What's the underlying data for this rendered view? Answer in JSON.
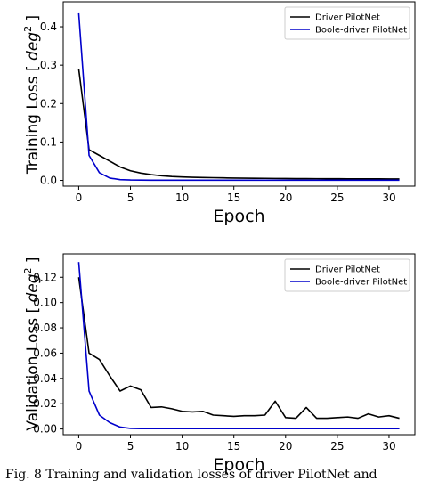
{
  "caption": "Fig. 8 Training and validation losses of driver PilotNet and",
  "chart_data": [
    {
      "type": "line",
      "id": "training",
      "xlabel": "Epoch",
      "ylabel_prefix": "Training Loss [ ",
      "ylabel_unit": "deg",
      "ylabel_power": "2",
      "ylabel_suffix": " ]",
      "xlim": [
        -1.5,
        32.5
      ],
      "ylim": [
        -0.015,
        0.465
      ],
      "xticks": [
        0,
        5,
        10,
        15,
        20,
        25,
        30
      ],
      "yticks": [
        0.0,
        0.1,
        0.2,
        0.3,
        0.4
      ],
      "ytick_labels": [
        "0.0",
        "0.1",
        "0.2",
        "0.3",
        "0.4"
      ],
      "legend_position": "top-right",
      "grid": false,
      "series": [
        {
          "name": "Driver PilotNet",
          "color": "#000000",
          "x": [
            0,
            1,
            2,
            3,
            4,
            5,
            6,
            7,
            8,
            9,
            10,
            11,
            12,
            13,
            14,
            15,
            16,
            17,
            18,
            19,
            20,
            21,
            22,
            23,
            24,
            25,
            26,
            27,
            28,
            29,
            30,
            31
          ],
          "y": [
            0.29,
            0.08,
            0.065,
            0.05,
            0.035,
            0.025,
            0.019,
            0.015,
            0.012,
            0.01,
            0.009,
            0.008,
            0.0075,
            0.007,
            0.0065,
            0.006,
            0.0058,
            0.0055,
            0.0053,
            0.005,
            0.0048,
            0.0046,
            0.0045,
            0.0044,
            0.0043,
            0.0042,
            0.0041,
            0.004,
            0.0039,
            0.0039,
            0.0038,
            0.0038
          ]
        },
        {
          "name": "Boole-driver PilotNet",
          "color": "#0000cc",
          "x": [
            0,
            1,
            2,
            3,
            4,
            5,
            6,
            7,
            8,
            9,
            10,
            11,
            12,
            13,
            14,
            15,
            16,
            17,
            18,
            19,
            20,
            21,
            22,
            23,
            24,
            25,
            26,
            27,
            28,
            29,
            30,
            31
          ],
          "y": [
            0.435,
            0.065,
            0.02,
            0.006,
            0.002,
            0.001,
            0.0008,
            0.0006,
            0.0005,
            0.0005,
            0.0004,
            0.0004,
            0.0004,
            0.0004,
            0.0004,
            0.0004,
            0.0004,
            0.0004,
            0.0004,
            0.0004,
            0.0004,
            0.0004,
            0.0004,
            0.0004,
            0.0004,
            0.0004,
            0.0004,
            0.0004,
            0.0004,
            0.0004,
            0.0004,
            0.0004
          ]
        }
      ]
    },
    {
      "type": "line",
      "id": "validation",
      "xlabel": "Epoch",
      "ylabel_prefix": "Validation Loss [ ",
      "ylabel_unit": "deg",
      "ylabel_power": "2",
      "ylabel_suffix": " ]",
      "xlim": [
        -1.5,
        32.5
      ],
      "ylim": [
        -0.0045,
        0.1385
      ],
      "xticks": [
        0,
        5,
        10,
        15,
        20,
        25,
        30
      ],
      "yticks": [
        0.0,
        0.02,
        0.04,
        0.06,
        0.08,
        0.1,
        0.12
      ],
      "ytick_labels": [
        "0.00",
        "0.02",
        "0.04",
        "0.06",
        "0.08",
        "0.10",
        "0.12"
      ],
      "legend_position": "top-right",
      "grid": false,
      "series": [
        {
          "name": "Driver PilotNet",
          "color": "#000000",
          "x": [
            0,
            1,
            2,
            3,
            4,
            5,
            6,
            7,
            8,
            9,
            10,
            11,
            12,
            13,
            14,
            15,
            16,
            17,
            18,
            19,
            20,
            21,
            22,
            23,
            24,
            25,
            26,
            27,
            28,
            29,
            30,
            31
          ],
          "y": [
            0.12,
            0.06,
            0.055,
            0.042,
            0.03,
            0.034,
            0.031,
            0.017,
            0.0175,
            0.016,
            0.014,
            0.0135,
            0.014,
            0.011,
            0.0105,
            0.01,
            0.0105,
            0.0105,
            0.011,
            0.022,
            0.009,
            0.0085,
            0.017,
            0.0085,
            0.0085,
            0.009,
            0.0095,
            0.0085,
            0.012,
            0.0095,
            0.0105,
            0.0085
          ]
        },
        {
          "name": "Boole-driver PilotNet",
          "color": "#0000cc",
          "x": [
            0,
            1,
            2,
            3,
            4,
            5,
            6,
            7,
            8,
            9,
            10,
            11,
            12,
            13,
            14,
            15,
            16,
            17,
            18,
            19,
            20,
            21,
            22,
            23,
            24,
            25,
            26,
            27,
            28,
            29,
            30,
            31
          ],
          "y": [
            0.132,
            0.03,
            0.011,
            0.005,
            0.0015,
            0.0005,
            0.0003,
            0.0003,
            0.0003,
            0.0003,
            0.0003,
            0.0003,
            0.0003,
            0.0003,
            0.0003,
            0.0003,
            0.0003,
            0.0003,
            0.0003,
            0.0003,
            0.0003,
            0.0003,
            0.0003,
            0.0003,
            0.0003,
            0.0003,
            0.0003,
            0.0003,
            0.0003,
            0.0003,
            0.0003,
            0.0003
          ]
        }
      ]
    }
  ]
}
